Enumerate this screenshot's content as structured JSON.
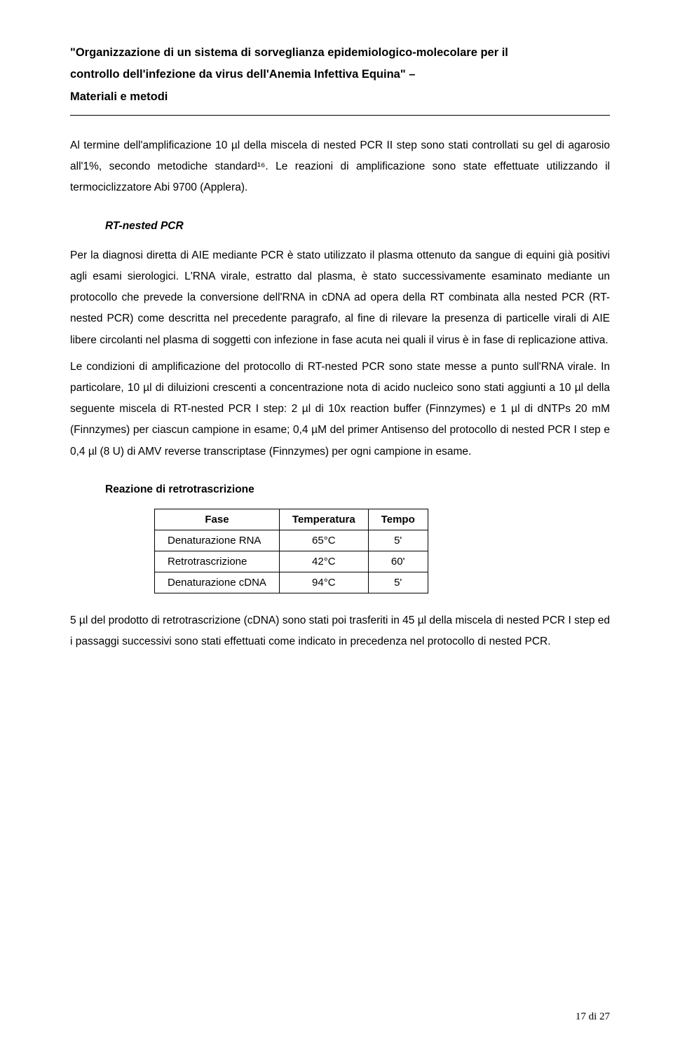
{
  "header": {
    "line1": "\"Organizzazione di un sistema di sorveglianza epidemiologico-molecolare per il",
    "line2": "controllo dell'infezione da virus dell'Anemia Infettiva Equina\" –",
    "line3": "Materiali e metodi"
  },
  "p1": "Al termine dell'amplificazione 10 µl della miscela di nested PCR II step sono stati controllati su gel di agarosio all'1%, secondo metodiche standard¹⁶. Le reazioni di amplificazione sono state effettuate utilizzando il termociclizzatore Abi 9700 (Applera).",
  "sub1": "RT-nested PCR",
  "p2": "Per la diagnosi diretta di AIE mediante PCR è stato utilizzato il plasma ottenuto da sangue di equini già positivi agli esami sierologici. L'RNA virale, estratto dal plasma, è stato successivamente esaminato mediante un protocollo che prevede la conversione dell'RNA in cDNA ad opera della RT combinata alla nested PCR (RT-nested PCR) come descritta nel precedente paragrafo, al fine di rilevare la presenza di particelle virali di AIE libere circolanti nel plasma di soggetti con infezione in fase acuta nei quali il virus è in fase di replicazione attiva.",
  "p3": "Le condizioni di amplificazione del protocollo di RT-nested PCR sono state messe a punto sull'RNA virale. In particolare, 10 µl di diluizioni crescenti a concentrazione nota di acido nucleico sono stati aggiunti a 10 µl della seguente miscela di RT-nested PCR I step: 2 µl di 10x reaction buffer (Finnzymes) e 1 µl di dNTPs 20 mM (Finnzymes) per ciascun campione in esame; 0,4 µM del primer Antisenso del protocollo di nested PCR I step e 0,4 µl (8 U) di AMV reverse transcriptase (Finnzymes) per ogni campione in esame.",
  "sub2": "Reazione di retrotrascrizione",
  "table": {
    "headers": [
      "Fase",
      "Temperatura",
      "Tempo"
    ],
    "rows": [
      [
        "Denaturazione RNA",
        "65°C",
        "5'"
      ],
      [
        "Retrotrascrizione",
        "42°C",
        "60'"
      ],
      [
        "Denaturazione cDNA",
        "94°C",
        "5'"
      ]
    ]
  },
  "p4": "5 µl del prodotto di retrotrascrizione (cDNA) sono stati poi trasferiti in 45 µl della miscela di nested PCR I step ed i passaggi successivi sono stati effettuati come indicato in precedenza nel protocollo di nested PCR.",
  "pagenum": "17 di 27"
}
